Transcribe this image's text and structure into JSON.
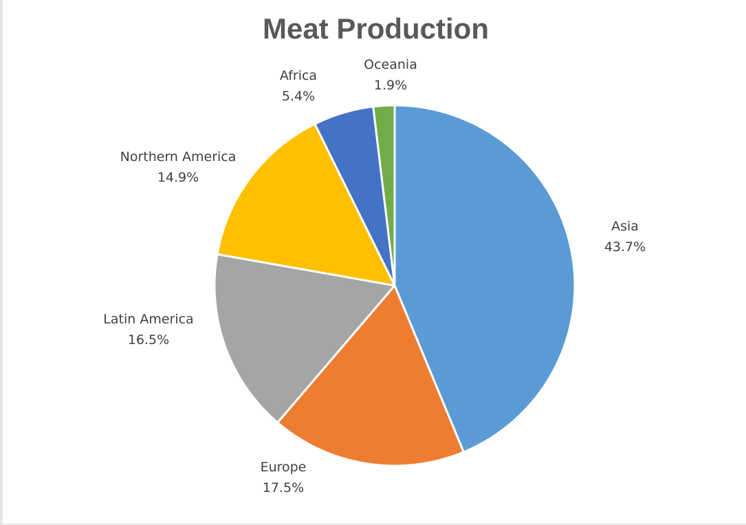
{
  "chart_data": {
    "type": "pie",
    "title": "Meat Production",
    "slices": [
      {
        "name": "Asia",
        "value": 43.7,
        "label": "43.7%",
        "color": "#5B9BD5"
      },
      {
        "name": "Europe",
        "value": 17.5,
        "label": "17.5%",
        "color": "#ED7D31"
      },
      {
        "name": "Latin America",
        "value": 16.5,
        "label": "16.5%",
        "color": "#A5A5A5"
      },
      {
        "name": "Northern America",
        "value": 14.9,
        "label": "14.9%",
        "color": "#FFC000"
      },
      {
        "name": "Africa",
        "value": 5.4,
        "label": "5.4%",
        "color": "#4472C4"
      },
      {
        "name": "Oceania",
        "value": 1.9,
        "label": "1.9%",
        "color": "#70AD47"
      }
    ],
    "start_angle": "12 o'clock",
    "direction": "clockwise",
    "legend": "none",
    "data_labels": "outside, category name and percentage"
  }
}
